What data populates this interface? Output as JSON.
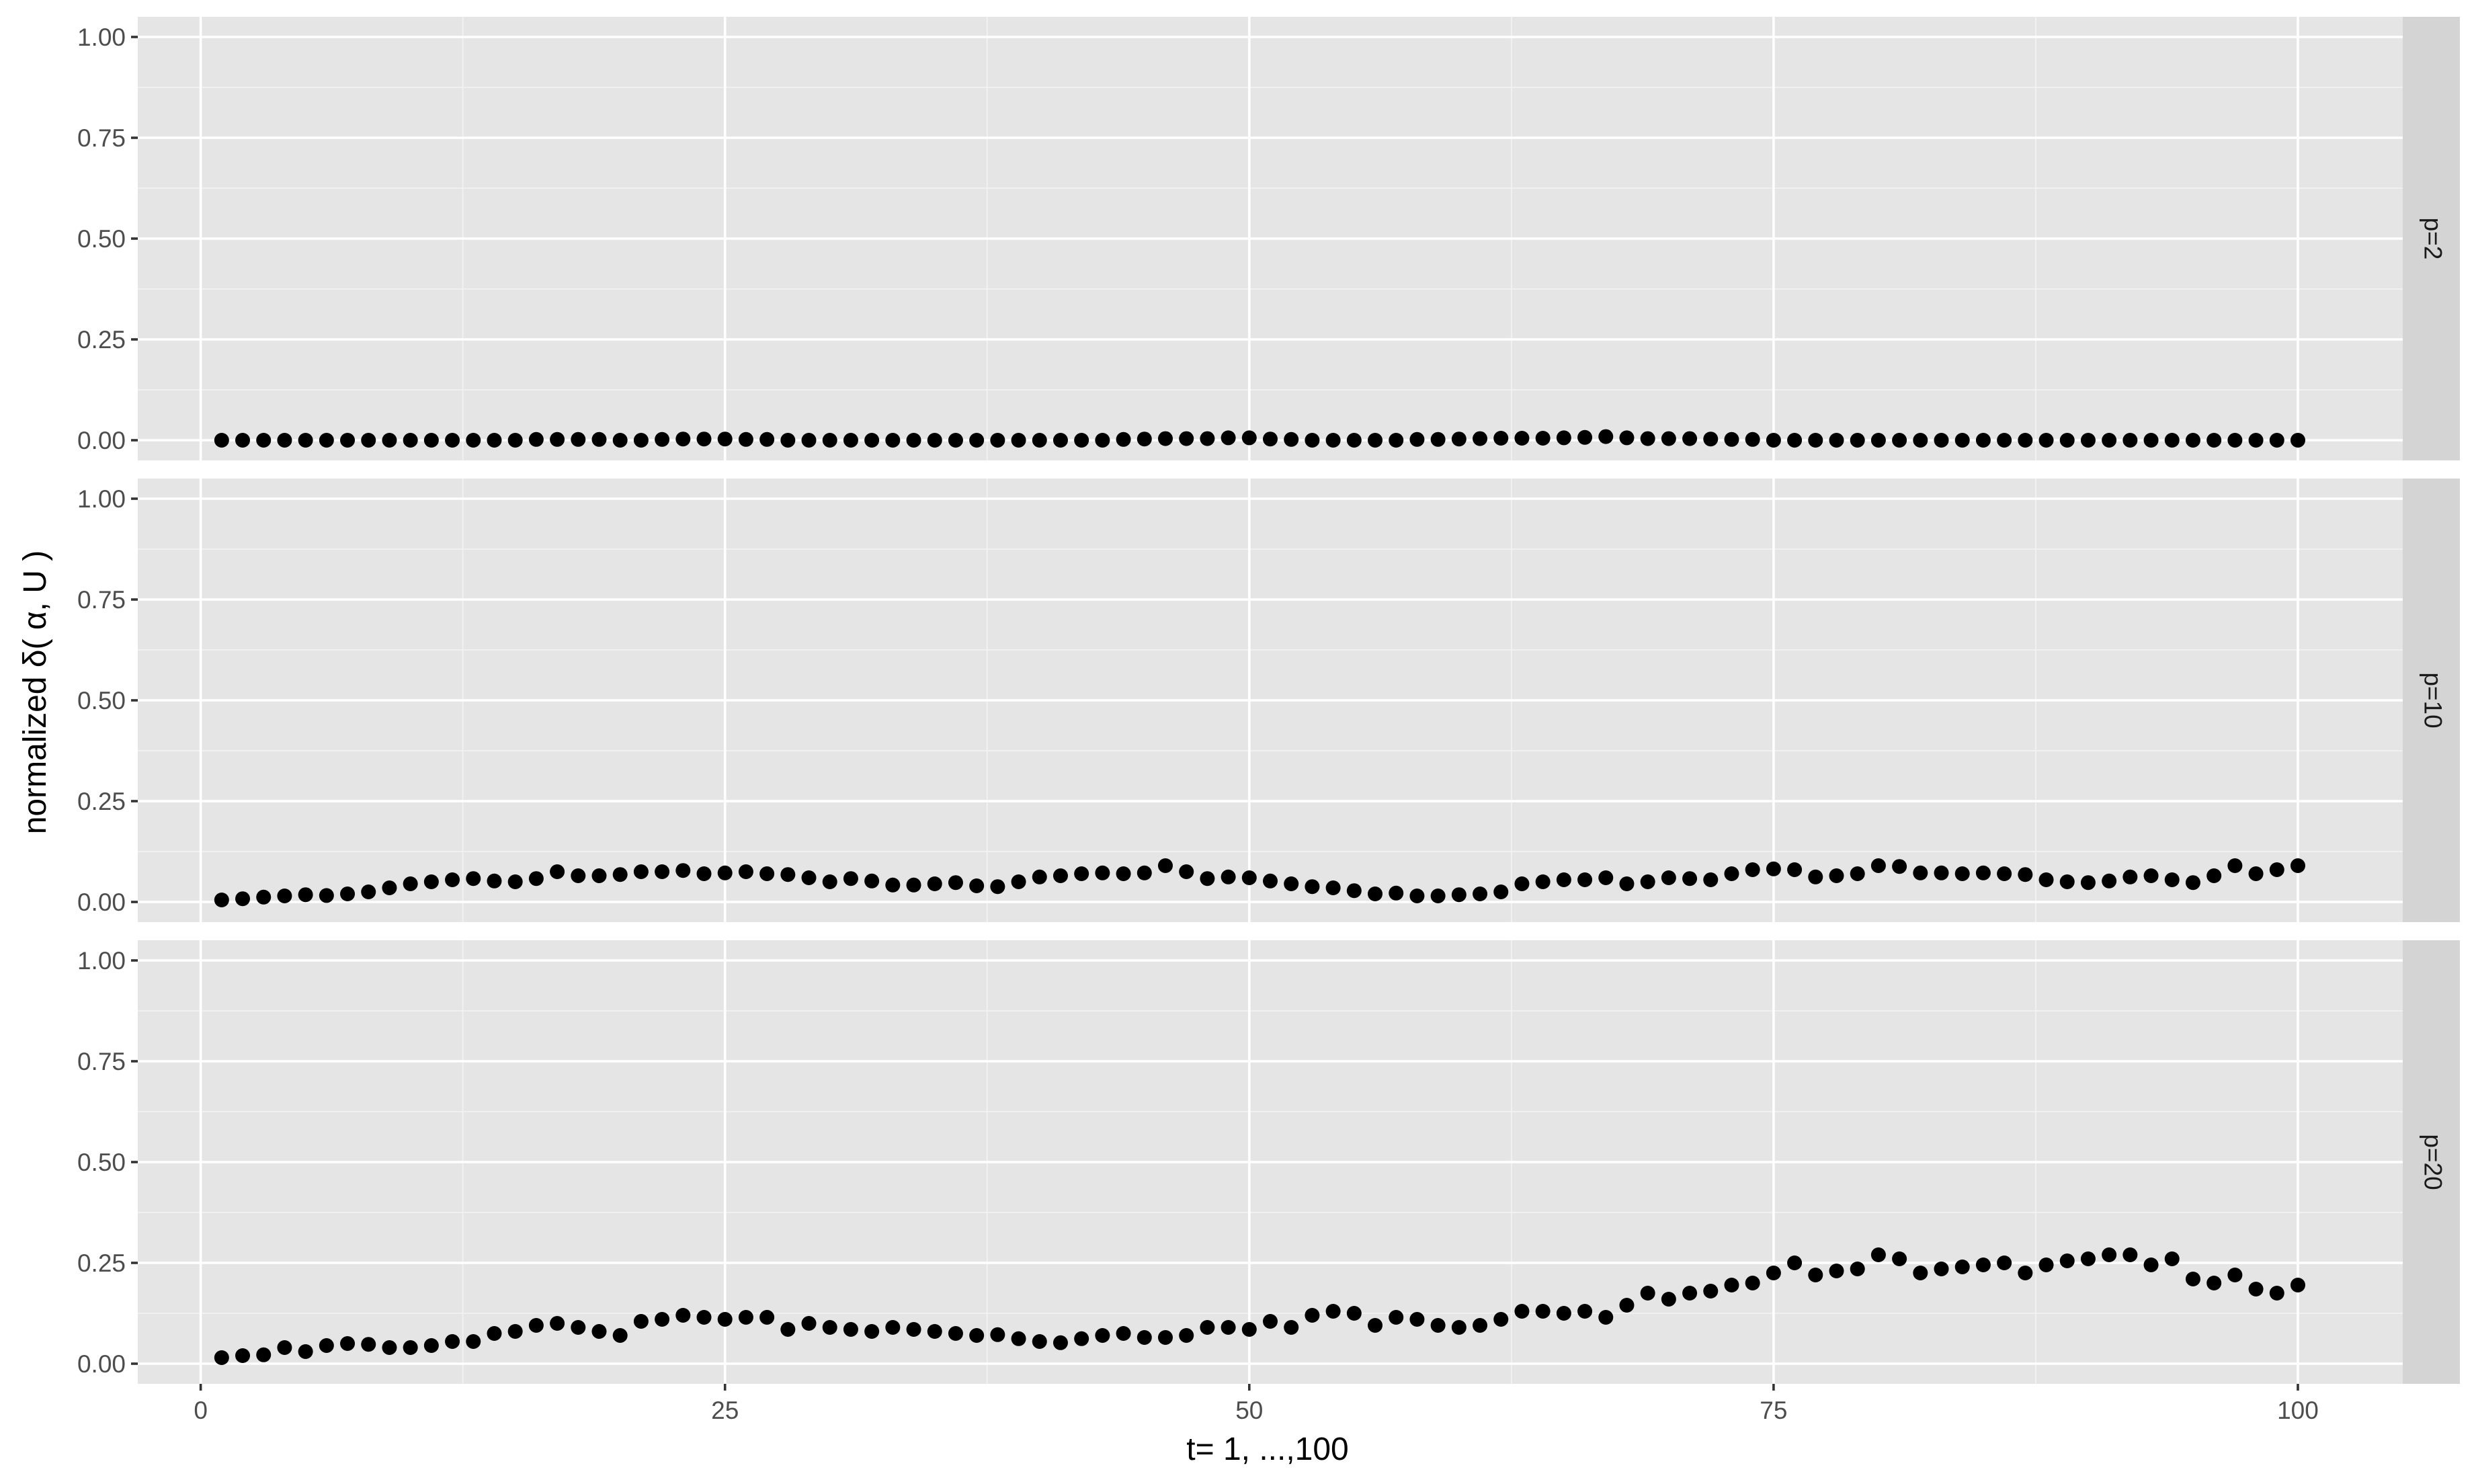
{
  "chart_data": {
    "type": "scatter",
    "xlabel": "t= 1, ...,100",
    "ylabel": "normalized δ( α, U )",
    "xlim": [
      -3,
      105
    ],
    "ylim": [
      -0.05,
      1.05
    ],
    "x_ticks": [
      0,
      25,
      50,
      75,
      100
    ],
    "x_tick_labels": [
      "0",
      "25",
      "50",
      "75",
      "100"
    ],
    "y_ticks": [
      0,
      0.25,
      0.5,
      0.75,
      1
    ],
    "y_tick_labels": [
      "0.00",
      "0.25",
      "0.50",
      "0.75",
      "1.00"
    ],
    "grid": true,
    "legend": "none",
    "point_color": "#000000",
    "panel_color": "#e5e5e5",
    "strip_color": "#d4d4d4",
    "panels": [
      {
        "label": "p=2",
        "x": [
          1,
          2,
          3,
          4,
          5,
          6,
          7,
          8,
          9,
          10,
          11,
          12,
          13,
          14,
          15,
          16,
          17,
          18,
          19,
          20,
          21,
          22,
          23,
          24,
          25,
          26,
          27,
          28,
          29,
          30,
          31,
          32,
          33,
          34,
          35,
          36,
          37,
          38,
          39,
          40,
          41,
          42,
          43,
          44,
          45,
          46,
          47,
          48,
          49,
          50,
          51,
          52,
          53,
          54,
          55,
          56,
          57,
          58,
          59,
          60,
          61,
          62,
          63,
          64,
          65,
          66,
          67,
          68,
          69,
          70,
          71,
          72,
          73,
          74,
          75,
          76,
          77,
          78,
          79,
          80,
          81,
          82,
          83,
          84,
          85,
          86,
          87,
          88,
          89,
          90,
          91,
          92,
          93,
          94,
          95,
          96,
          97,
          98,
          99,
          100
        ],
        "y": [
          0.0,
          0.0,
          0.0,
          0.0,
          0.0,
          0.0,
          0.0,
          0.0,
          0.0,
          0.0,
          0.0,
          0.0,
          0.0,
          0.0,
          0.0,
          0.002,
          0.002,
          0.002,
          0.002,
          0.0,
          0.0,
          0.002,
          0.003,
          0.003,
          0.003,
          0.002,
          0.002,
          0.0,
          0.0,
          0.0,
          0.0,
          0.0,
          0.0,
          0.0,
          0.0,
          0.0,
          0.0,
          0.0,
          0.0,
          0.0,
          0.0,
          0.0,
          0.0,
          0.002,
          0.003,
          0.004,
          0.004,
          0.004,
          0.006,
          0.006,
          0.003,
          0.002,
          0.0,
          0.0,
          0.0,
          0.0,
          0.0,
          0.002,
          0.002,
          0.003,
          0.004,
          0.005,
          0.005,
          0.005,
          0.006,
          0.007,
          0.009,
          0.006,
          0.004,
          0.004,
          0.004,
          0.003,
          0.002,
          0.002,
          0.0,
          0.0,
          0.0,
          0.0,
          0.0,
          0.0,
          0.0,
          0.0,
          0.0,
          0.0,
          0.0,
          0.0,
          0.0,
          0.0,
          0.0,
          0.0,
          0.0,
          0.0,
          0.0,
          0.0,
          0.0,
          0.0,
          0.0,
          0.0,
          0.0,
          0.0
        ]
      },
      {
        "label": "p=10",
        "x": [
          1,
          2,
          3,
          4,
          5,
          6,
          7,
          8,
          9,
          10,
          11,
          12,
          13,
          14,
          15,
          16,
          17,
          18,
          19,
          20,
          21,
          22,
          23,
          24,
          25,
          26,
          27,
          28,
          29,
          30,
          31,
          32,
          33,
          34,
          35,
          36,
          37,
          38,
          39,
          40,
          41,
          42,
          43,
          44,
          45,
          46,
          47,
          48,
          49,
          50,
          51,
          52,
          53,
          54,
          55,
          56,
          57,
          58,
          59,
          60,
          61,
          62,
          63,
          64,
          65,
          66,
          67,
          68,
          69,
          70,
          71,
          72,
          73,
          74,
          75,
          76,
          77,
          78,
          79,
          80,
          81,
          82,
          83,
          84,
          85,
          86,
          87,
          88,
          89,
          90,
          91,
          92,
          93,
          94,
          95,
          96,
          97,
          98,
          99,
          100
        ],
        "y": [
          0.005,
          0.008,
          0.012,
          0.015,
          0.018,
          0.016,
          0.02,
          0.025,
          0.035,
          0.045,
          0.05,
          0.055,
          0.058,
          0.052,
          0.05,
          0.058,
          0.075,
          0.065,
          0.065,
          0.068,
          0.075,
          0.075,
          0.078,
          0.07,
          0.072,
          0.075,
          0.07,
          0.068,
          0.06,
          0.05,
          0.058,
          0.052,
          0.042,
          0.042,
          0.045,
          0.048,
          0.04,
          0.038,
          0.05,
          0.062,
          0.065,
          0.07,
          0.072,
          0.07,
          0.072,
          0.09,
          0.075,
          0.058,
          0.062,
          0.06,
          0.052,
          0.045,
          0.038,
          0.035,
          0.028,
          0.02,
          0.022,
          0.015,
          0.015,
          0.018,
          0.02,
          0.025,
          0.045,
          0.05,
          0.055,
          0.055,
          0.06,
          0.045,
          0.05,
          0.06,
          0.058,
          0.055,
          0.07,
          0.08,
          0.082,
          0.08,
          0.062,
          0.065,
          0.07,
          0.09,
          0.088,
          0.072,
          0.072,
          0.07,
          0.072,
          0.07,
          0.068,
          0.055,
          0.05,
          0.048,
          0.052,
          0.062,
          0.065,
          0.055,
          0.048,
          0.065,
          0.09,
          0.07,
          0.08,
          0.09
        ]
      },
      {
        "label": "p=20",
        "x": [
          1,
          2,
          3,
          4,
          5,
          6,
          7,
          8,
          9,
          10,
          11,
          12,
          13,
          14,
          15,
          16,
          17,
          18,
          19,
          20,
          21,
          22,
          23,
          24,
          25,
          26,
          27,
          28,
          29,
          30,
          31,
          32,
          33,
          34,
          35,
          36,
          37,
          38,
          39,
          40,
          41,
          42,
          43,
          44,
          45,
          46,
          47,
          48,
          49,
          50,
          51,
          52,
          53,
          54,
          55,
          56,
          57,
          58,
          59,
          60,
          61,
          62,
          63,
          64,
          65,
          66,
          67,
          68,
          69,
          70,
          71,
          72,
          73,
          74,
          75,
          76,
          77,
          78,
          79,
          80,
          81,
          82,
          83,
          84,
          85,
          86,
          87,
          88,
          89,
          90,
          91,
          92,
          93,
          94,
          95,
          96,
          97,
          98,
          99,
          100
        ],
        "y": [
          0.015,
          0.02,
          0.022,
          0.04,
          0.03,
          0.045,
          0.05,
          0.048,
          0.04,
          0.04,
          0.045,
          0.055,
          0.055,
          0.075,
          0.08,
          0.095,
          0.1,
          0.09,
          0.08,
          0.07,
          0.105,
          0.11,
          0.12,
          0.115,
          0.11,
          0.115,
          0.115,
          0.085,
          0.1,
          0.09,
          0.085,
          0.08,
          0.09,
          0.085,
          0.08,
          0.075,
          0.07,
          0.072,
          0.062,
          0.055,
          0.052,
          0.062,
          0.07,
          0.075,
          0.065,
          0.065,
          0.07,
          0.09,
          0.09,
          0.085,
          0.105,
          0.09,
          0.12,
          0.13,
          0.125,
          0.095,
          0.115,
          0.11,
          0.095,
          0.09,
          0.095,
          0.11,
          0.13,
          0.13,
          0.125,
          0.13,
          0.115,
          0.145,
          0.175,
          0.16,
          0.175,
          0.18,
          0.195,
          0.2,
          0.225,
          0.25,
          0.22,
          0.23,
          0.235,
          0.27,
          0.26,
          0.225,
          0.235,
          0.24,
          0.245,
          0.25,
          0.225,
          0.245,
          0.255,
          0.26,
          0.27,
          0.27,
          0.245,
          0.26,
          0.21,
          0.2,
          0.22,
          0.185,
          0.175,
          0.195
        ]
      }
    ]
  }
}
